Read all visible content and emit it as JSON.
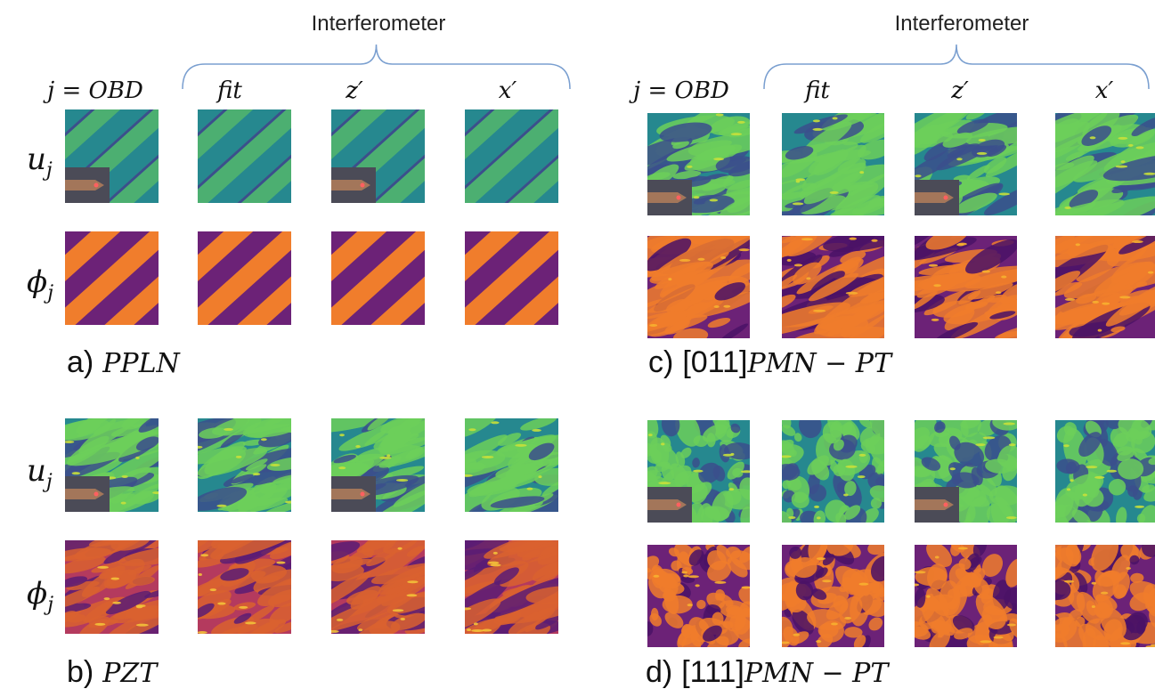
{
  "figure": {
    "groups": [
      {
        "bracket_label": "Interferometer",
        "columns": [
          "j = OBD",
          "fit",
          "z′",
          "x′"
        ]
      },
      {
        "bracket_label": "Interferometer",
        "columns": [
          "j = OBD",
          "fit",
          "z′",
          "x′"
        ]
      }
    ],
    "row_labels": [
      {
        "symbol": "u",
        "subscript": "j"
      },
      {
        "symbol": "ϕ",
        "subscript": "j"
      }
    ],
    "panels": [
      {
        "letter": "a)",
        "name": "PPLN"
      },
      {
        "letter": "b)",
        "name": "PZT"
      },
      {
        "letter": "c)",
        "prefix": "[011]",
        "name": "PMN − PT"
      },
      {
        "letter": "d)",
        "prefix": "[111]",
        "name": "PMN − PT"
      }
    ]
  }
}
